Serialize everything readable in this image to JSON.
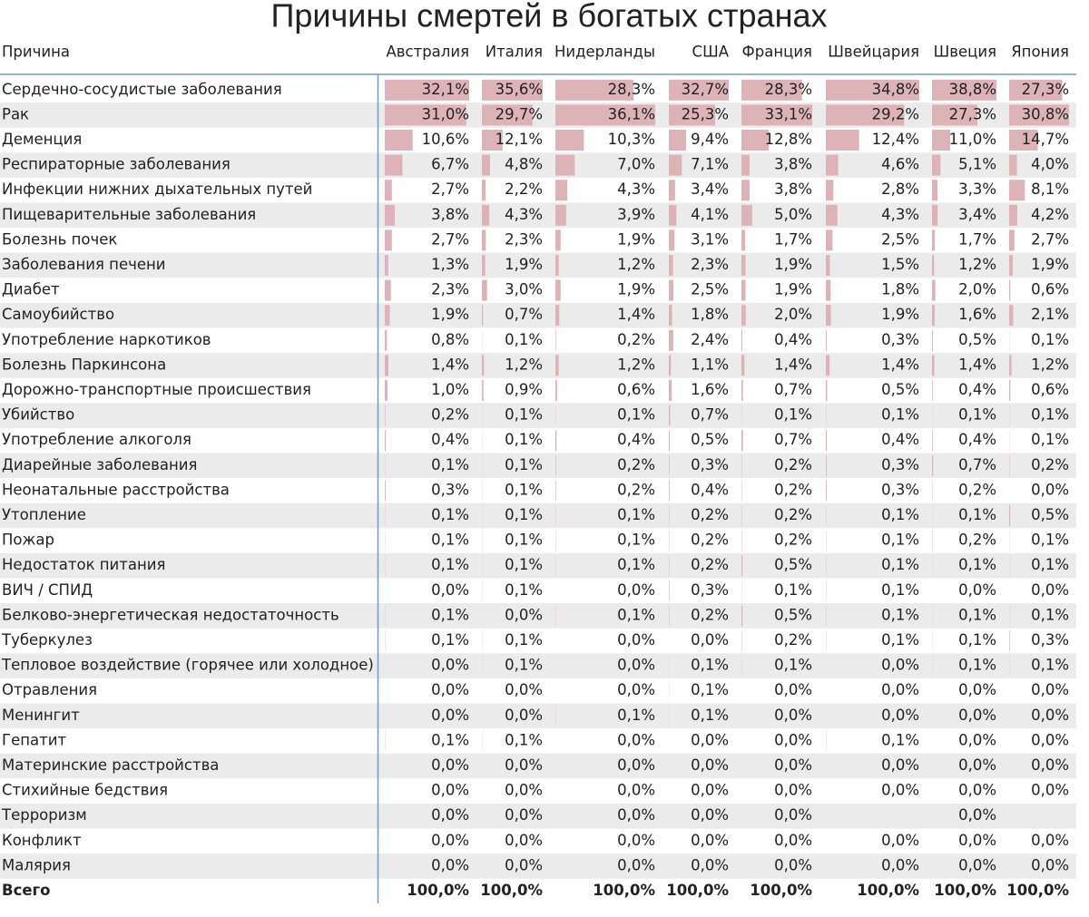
{
  "title": "Причины смертей в богатых странах",
  "header": {
    "cause": "Причина",
    "columns": [
      "Австралия",
      "Италия",
      "Нидерланды",
      "США",
      "Франция",
      "Швейцария",
      "Швеция",
      "Япония"
    ]
  },
  "rows": [
    {
      "name": "Сердечно-сосудистые заболевания",
      "values": [
        32.1,
        35.6,
        28.3,
        32.7,
        28.3,
        34.8,
        38.8,
        27.3
      ],
      "labels": [
        "32,1%",
        "35,6%",
        "28,3%",
        "32,7%",
        "28,3%",
        "34,8%",
        "38,8%",
        "27,3%"
      ]
    },
    {
      "name": "Рак",
      "values": [
        31.0,
        29.7,
        36.1,
        25.3,
        33.1,
        29.2,
        27.3,
        30.8
      ],
      "labels": [
        "31,0%",
        "29,7%",
        "36,1%",
        "25,3%",
        "33,1%",
        "29,2%",
        "27,3%",
        "30,8%"
      ]
    },
    {
      "name": "Деменция",
      "values": [
        10.6,
        12.1,
        10.3,
        9.4,
        12.8,
        12.4,
        11.0,
        14.7
      ],
      "labels": [
        "10,6%",
        "12,1%",
        "10,3%",
        "9,4%",
        "12,8%",
        "12,4%",
        "11,0%",
        "14,7%"
      ]
    },
    {
      "name": "Респираторные заболевания",
      "values": [
        6.7,
        4.8,
        7.0,
        7.1,
        3.8,
        4.6,
        5.1,
        4.0
      ],
      "labels": [
        "6,7%",
        "4,8%",
        "7,0%",
        "7,1%",
        "3,8%",
        "4,6%",
        "5,1%",
        "4,0%"
      ]
    },
    {
      "name": "Инфекции нижних дыхательных путей",
      "values": [
        2.7,
        2.2,
        4.3,
        3.4,
        3.8,
        2.8,
        3.3,
        8.1
      ],
      "labels": [
        "2,7%",
        "2,2%",
        "4,3%",
        "3,4%",
        "3,8%",
        "2,8%",
        "3,3%",
        "8,1%"
      ]
    },
    {
      "name": "Пищеварительные заболевания",
      "values": [
        3.8,
        4.3,
        3.9,
        4.1,
        5.0,
        4.3,
        3.4,
        4.2
      ],
      "labels": [
        "3,8%",
        "4,3%",
        "3,9%",
        "4,1%",
        "5,0%",
        "4,3%",
        "3,4%",
        "4,2%"
      ]
    },
    {
      "name": "Болезнь почек",
      "values": [
        2.7,
        2.3,
        1.9,
        3.1,
        1.7,
        2.5,
        1.7,
        2.7
      ],
      "labels": [
        "2,7%",
        "2,3%",
        "1,9%",
        "3,1%",
        "1,7%",
        "2,5%",
        "1,7%",
        "2,7%"
      ]
    },
    {
      "name": "Заболевания печени",
      "values": [
        1.3,
        1.9,
        1.2,
        2.3,
        1.9,
        1.5,
        1.2,
        1.9
      ],
      "labels": [
        "1,3%",
        "1,9%",
        "1,2%",
        "2,3%",
        "1,9%",
        "1,5%",
        "1,2%",
        "1,9%"
      ]
    },
    {
      "name": "Диабет",
      "values": [
        2.3,
        3.0,
        1.9,
        2.5,
        1.9,
        1.8,
        2.0,
        0.6
      ],
      "labels": [
        "2,3%",
        "3,0%",
        "1,9%",
        "2,5%",
        "1,9%",
        "1,8%",
        "2,0%",
        "0,6%"
      ]
    },
    {
      "name": "Самоубийство",
      "values": [
        1.9,
        0.7,
        1.4,
        1.8,
        2.0,
        1.9,
        1.6,
        2.1
      ],
      "labels": [
        "1,9%",
        "0,7%",
        "1,4%",
        "1,8%",
        "2,0%",
        "1,9%",
        "1,6%",
        "2,1%"
      ]
    },
    {
      "name": "Употребление наркотиков",
      "values": [
        0.8,
        0.1,
        0.2,
        2.4,
        0.4,
        0.3,
        0.5,
        0.1
      ],
      "labels": [
        "0,8%",
        "0,1%",
        "0,2%",
        "2,4%",
        "0,4%",
        "0,3%",
        "0,5%",
        "0,1%"
      ]
    },
    {
      "name": "Болезнь Паркинсона",
      "values": [
        1.4,
        1.2,
        1.2,
        1.1,
        1.4,
        1.4,
        1.4,
        1.2
      ],
      "labels": [
        "1,4%",
        "1,2%",
        "1,2%",
        "1,1%",
        "1,4%",
        "1,4%",
        "1,4%",
        "1,2%"
      ]
    },
    {
      "name": "Дорожно-транспортные происшествия",
      "values": [
        1.0,
        0.9,
        0.6,
        1.6,
        0.7,
        0.5,
        0.4,
        0.6
      ],
      "labels": [
        "1,0%",
        "0,9%",
        "0,6%",
        "1,6%",
        "0,7%",
        "0,5%",
        "0,4%",
        "0,6%"
      ]
    },
    {
      "name": "Убийство",
      "values": [
        0.2,
        0.1,
        0.1,
        0.7,
        0.1,
        0.1,
        0.1,
        0.1
      ],
      "labels": [
        "0,2%",
        "0,1%",
        "0,1%",
        "0,7%",
        "0,1%",
        "0,1%",
        "0,1%",
        "0,1%"
      ]
    },
    {
      "name": "Употребление алкоголя",
      "values": [
        0.4,
        0.1,
        0.4,
        0.5,
        0.7,
        0.4,
        0.4,
        0.1
      ],
      "labels": [
        "0,4%",
        "0,1%",
        "0,4%",
        "0,5%",
        "0,7%",
        "0,4%",
        "0,4%",
        "0,1%"
      ]
    },
    {
      "name": "Диарейные заболевания",
      "values": [
        0.1,
        0.1,
        0.2,
        0.3,
        0.2,
        0.3,
        0.7,
        0.2
      ],
      "labels": [
        "0,1%",
        "0,1%",
        "0,2%",
        "0,3%",
        "0,2%",
        "0,3%",
        "0,7%",
        "0,2%"
      ]
    },
    {
      "name": "Неонатальные расстройства",
      "values": [
        0.3,
        0.1,
        0.2,
        0.4,
        0.2,
        0.3,
        0.2,
        0
      ],
      "labels": [
        "0,3%",
        "0,1%",
        "0,2%",
        "0,4%",
        "0,2%",
        "0,3%",
        "0,2%",
        "0,0%"
      ]
    },
    {
      "name": "Утопление",
      "values": [
        0.1,
        0.1,
        0.1,
        0.2,
        0.2,
        0.1,
        0.1,
        0.5
      ],
      "labels": [
        "0,1%",
        "0,1%",
        "0,1%",
        "0,2%",
        "0,2%",
        "0,1%",
        "0,1%",
        "0,5%"
      ]
    },
    {
      "name": "Пожар",
      "values": [
        0.1,
        0.1,
        0.1,
        0.2,
        0.2,
        0.1,
        0.2,
        0.1
      ],
      "labels": [
        "0,1%",
        "0,1%",
        "0,1%",
        "0,2%",
        "0,2%",
        "0,1%",
        "0,2%",
        "0,1%"
      ]
    },
    {
      "name": "Недостаток питания",
      "values": [
        0.1,
        0.1,
        0.1,
        0.2,
        0.5,
        0.1,
        0.1,
        0.1
      ],
      "labels": [
        "0,1%",
        "0,1%",
        "0,1%",
        "0,2%",
        "0,5%",
        "0,1%",
        "0,1%",
        "0,1%"
      ]
    },
    {
      "name": "ВИЧ / СПИД",
      "values": [
        0,
        0.1,
        0,
        0.3,
        0.1,
        0.1,
        0,
        0
      ],
      "labels": [
        "0,0%",
        "0,1%",
        "0,0%",
        "0,3%",
        "0,1%",
        "0,1%",
        "0,0%",
        "0,0%"
      ]
    },
    {
      "name": "Белково-энергетическая недостаточность",
      "values": [
        0.1,
        0,
        0.1,
        0.2,
        0.5,
        0.1,
        0.1,
        0.1
      ],
      "labels": [
        "0,1%",
        "0,0%",
        "0,1%",
        "0,2%",
        "0,5%",
        "0,1%",
        "0,1%",
        "0,1%"
      ]
    },
    {
      "name": "Туберкулез",
      "values": [
        0.1,
        0.1,
        0,
        0,
        0.2,
        0.1,
        0.1,
        0.3
      ],
      "labels": [
        "0,1%",
        "0,1%",
        "0,0%",
        "0,0%",
        "0,2%",
        "0,1%",
        "0,1%",
        "0,3%"
      ]
    },
    {
      "name": "Тепловое воздействие (горячее или холодное)",
      "values": [
        0,
        0.1,
        0,
        0.1,
        0.1,
        0,
        0.1,
        0.1
      ],
      "labels": [
        "0,0%",
        "0,1%",
        "0,0%",
        "0,1%",
        "0,1%",
        "0,0%",
        "0,1%",
        "0,1%"
      ]
    },
    {
      "name": "Отравления",
      "values": [
        0,
        0,
        0,
        0.1,
        0,
        0,
        0,
        0
      ],
      "labels": [
        "0,0%",
        "0,0%",
        "0,0%",
        "0,1%",
        "0,0%",
        "0,0%",
        "0,0%",
        "0,0%"
      ]
    },
    {
      "name": "Менингит",
      "values": [
        0,
        0,
        0.1,
        0.1,
        0,
        0,
        0,
        0
      ],
      "labels": [
        "0,0%",
        "0,0%",
        "0,1%",
        "0,1%",
        "0,0%",
        "0,0%",
        "0,0%",
        "0,0%"
      ]
    },
    {
      "name": "Гепатит",
      "values": [
        0.1,
        0.1,
        0,
        0,
        0,
        0.1,
        0,
        0
      ],
      "labels": [
        "0,1%",
        "0,1%",
        "0,0%",
        "0,0%",
        "0,0%",
        "0,1%",
        "0,0%",
        "0,0%"
      ]
    },
    {
      "name": "Материнские расстройства",
      "values": [
        0,
        0,
        0,
        0,
        0,
        0,
        0,
        0
      ],
      "labels": [
        "0,0%",
        "0,0%",
        "0,0%",
        "0,0%",
        "0,0%",
        "0,0%",
        "0,0%",
        "0,0%"
      ]
    },
    {
      "name": "Стихийные бедствия",
      "values": [
        0,
        0,
        0,
        0,
        0,
        0,
        0,
        0
      ],
      "labels": [
        "0,0%",
        "0,0%",
        "0,0%",
        "0,0%",
        "0,0%",
        "0,0%",
        "0,0%",
        "0,0%"
      ]
    },
    {
      "name": "Терроризм",
      "values": [
        0,
        0,
        0,
        0,
        0,
        null,
        0,
        null
      ],
      "labels": [
        "0,0%",
        "0,0%",
        "0,0%",
        "0,0%",
        "0,0%",
        null,
        "0,0%",
        null
      ]
    },
    {
      "name": "Конфликт",
      "values": [
        0,
        0,
        0,
        0,
        0,
        0,
        0,
        0
      ],
      "labels": [
        "0,0%",
        "0,0%",
        "0,0%",
        "0,0%",
        "0,0%",
        "0,0%",
        "0,0%",
        "0,0%"
      ]
    },
    {
      "name": "Малярия",
      "values": [
        0,
        0,
        0,
        0,
        0,
        0,
        0,
        0
      ],
      "labels": [
        "0,0%",
        "0,0%",
        "0,0%",
        "0,0%",
        "0,0%",
        "0,0%",
        "0,0%",
        "0,0%"
      ]
    }
  ],
  "total": {
    "name": "Всего",
    "labels": [
      "100,0%",
      "100,0%",
      "100,0%",
      "100,0%",
      "100,0%",
      "100,0%",
      "100,0%",
      "100,0%"
    ]
  },
  "bar_color": "#ddb3b8"
}
